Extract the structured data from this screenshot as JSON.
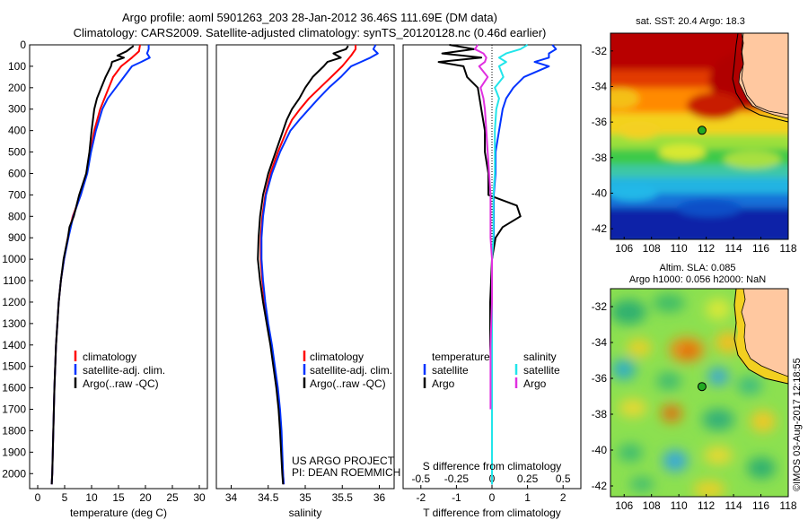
{
  "header": {
    "line1": "Argo profile: aoml 5901263_203 28-Jan-2012 36.46S 111.69E (DM data)",
    "line2": "Climatology: CARS2009. Satellite-adjusted climatology: synTS_20120128.nc (0.46d earlier)"
  },
  "credit": {
    "project": "US ARGO PROJECT",
    "pi": "PI: DEAN ROEMMICH",
    "imos": "©IMOS 03-Aug-2017 12:18:55"
  },
  "colors": {
    "climatology": "#ff0000",
    "satellite": "#0033ff",
    "argo": "#000000",
    "salinity_satellite": "#22e5ea",
    "salinity_argo": "#e030e0",
    "land": "#ffc8a0",
    "float_marker": "#22aa22"
  },
  "chart_data": [
    {
      "type": "line",
      "id": "temperature",
      "xlabel": "temperature (deg C)",
      "ylabel": "",
      "xlim": [
        -1.5,
        31.5
      ],
      "ylim": [
        2070,
        0
      ],
      "xticks": [
        "0",
        "5",
        "10",
        "15",
        "20",
        "25",
        "30"
      ],
      "yticks": [
        "0",
        "100",
        "200",
        "300",
        "400",
        "500",
        "600",
        "700",
        "800",
        "900",
        "1000",
        "1100",
        "1200",
        "1300",
        "1400",
        "1500",
        "1600",
        "1700",
        "1800",
        "1900",
        "2000"
      ],
      "legend": [
        "climatology",
        "satellite-adj. clim.",
        "Argo(..raw -QC)"
      ],
      "series": [
        {
          "name": "climatology",
          "color": "#ff0000",
          "depth": [
            0,
            30,
            60,
            100,
            150,
            200,
            250,
            300,
            400,
            500,
            600,
            700,
            800,
            900,
            1000,
            1100,
            1200,
            1400,
            1600,
            1800,
            2000,
            2050
          ],
          "values": [
            19.0,
            18.8,
            17.5,
            15.5,
            14.0,
            13.2,
            12.4,
            11.6,
            10.5,
            9.8,
            9.1,
            8.0,
            6.5,
            5.6,
            4.9,
            4.3,
            3.9,
            3.4,
            3.1,
            2.9,
            2.7,
            2.6
          ]
        },
        {
          "name": "satellite-adj. clim.",
          "color": "#0033ff",
          "depth": [
            0,
            20,
            40,
            60,
            80,
            100,
            150,
            200,
            250,
            300,
            400,
            500,
            600,
            700,
            800,
            900,
            1000,
            1100,
            1200,
            1400,
            1600,
            1800,
            2000,
            2050
          ],
          "values": [
            20.6,
            20.6,
            20.3,
            20.8,
            19.2,
            17.5,
            16.0,
            14.5,
            13.0,
            12.0,
            10.8,
            9.9,
            9.2,
            8.0,
            6.6,
            5.7,
            4.9,
            4.3,
            3.9,
            3.4,
            3.1,
            2.9,
            2.7,
            2.6
          ]
        },
        {
          "name": "Argo(..raw -QC)",
          "color": "#000000",
          "depth": [
            5,
            30,
            50,
            60,
            80,
            100,
            150,
            200,
            250,
            300,
            400,
            500,
            600,
            700,
            800,
            850,
            900,
            1000,
            1100,
            1200,
            1400,
            1600,
            1800,
            2000,
            2050
          ],
          "values": [
            17.8,
            16.5,
            14.8,
            16.0,
            13.8,
            13.6,
            12.6,
            11.8,
            11.0,
            10.5,
            10.0,
            9.6,
            9.0,
            7.7,
            6.7,
            5.9,
            5.6,
            4.8,
            4.3,
            3.9,
            3.4,
            3.1,
            2.9,
            2.7,
            2.6
          ]
        }
      ]
    },
    {
      "type": "line",
      "id": "salinity",
      "xlabel": "salinity",
      "ylabel": "",
      "xlim": [
        33.8,
        36.2
      ],
      "ylim": [
        2070,
        0
      ],
      "xticks": [
        "34",
        "34.5",
        "35",
        "35.5",
        "36"
      ],
      "legend": [
        "climatology",
        "satellite-adj. clim.",
        "Argo(..raw -QC)"
      ],
      "series": [
        {
          "name": "climatology",
          "color": "#ff0000",
          "depth": [
            0,
            20,
            50,
            100,
            150,
            200,
            250,
            300,
            350,
            400,
            500,
            600,
            700,
            800,
            900,
            1000,
            1100,
            1200,
            1300,
            1400,
            1500,
            1600,
            1700,
            1800,
            2000,
            2050
          ],
          "values": [
            35.68,
            35.68,
            35.62,
            35.5,
            35.35,
            35.2,
            35.05,
            34.93,
            34.82,
            34.75,
            34.63,
            34.53,
            34.46,
            34.42,
            34.4,
            34.4,
            34.42,
            34.45,
            34.49,
            34.54,
            34.58,
            34.62,
            34.65,
            34.67,
            34.7,
            34.71
          ]
        },
        {
          "name": "satellite-adj. clim.",
          "color": "#0033ff",
          "depth": [
            0,
            20,
            40,
            60,
            80,
            100,
            150,
            200,
            250,
            300,
            350,
            400,
            500,
            600,
            700,
            800,
            900,
            1000,
            1100,
            1200,
            1300,
            1400,
            1500,
            1600,
            1700,
            1800,
            2000,
            2050
          ],
          "values": [
            35.95,
            35.92,
            35.98,
            35.88,
            35.75,
            35.62,
            35.48,
            35.32,
            35.18,
            35.05,
            34.92,
            34.8,
            34.66,
            34.55,
            34.47,
            34.43,
            34.41,
            34.41,
            34.43,
            34.46,
            34.5,
            34.55,
            34.59,
            34.63,
            34.66,
            34.68,
            34.7,
            34.71
          ]
        },
        {
          "name": "Argo(..raw -QC)",
          "color": "#000000",
          "depth": [
            5,
            20,
            40,
            60,
            80,
            100,
            150,
            200,
            250,
            300,
            350,
            400,
            500,
            600,
            700,
            800,
            900,
            1000,
            1100,
            1200,
            1300,
            1400,
            1500,
            1600,
            1700,
            1800,
            2000,
            2050
          ],
          "values": [
            35.58,
            35.55,
            35.38,
            35.48,
            35.3,
            35.25,
            35.1,
            35.0,
            34.92,
            34.82,
            34.75,
            34.7,
            34.6,
            34.5,
            34.43,
            34.39,
            34.37,
            34.36,
            34.39,
            34.43,
            34.48,
            34.53,
            34.57,
            34.61,
            34.64,
            34.66,
            34.69,
            34.7
          ]
        }
      ]
    },
    {
      "type": "line",
      "id": "difference",
      "xlabel": "T difference from climatology",
      "xlabel_top": "S difference from climatology",
      "xlim": [
        -2.5,
        2.5
      ],
      "ylim": [
        2070,
        0
      ],
      "xticks": [
        "-2",
        "-1",
        "0",
        "1",
        "2"
      ],
      "xticks_top": [
        "-0.5",
        "-0.25",
        "0",
        "0.25",
        "0.5"
      ],
      "legend_titles": [
        "temperature",
        "salinity"
      ],
      "legend": [
        "satellite",
        "Argo",
        "satellite",
        "Argo"
      ],
      "series": [
        {
          "name": "satellite",
          "color": "#0033ff",
          "depth": [
            0,
            20,
            40,
            60,
            80,
            100,
            150,
            200,
            250,
            300,
            400,
            500,
            600,
            700,
            800,
            900,
            1000,
            1200,
            1400,
            1600,
            1800,
            2050
          ],
          "values": [
            1.7,
            1.8,
            1.6,
            1.6,
            1.2,
            1.6,
            0.9,
            0.6,
            0.4,
            0.3,
            0.2,
            0.1,
            0.1,
            0.05,
            0.05,
            0.05,
            0.0,
            0.0,
            0.0,
            0.0,
            0.0,
            0.0
          ]
        },
        {
          "name": "Argo",
          "color": "#000000",
          "depth": [
            0,
            20,
            40,
            60,
            80,
            100,
            150,
            200,
            300,
            400,
            500,
            600,
            700,
            750,
            800,
            850,
            900,
            1000,
            1200,
            1400,
            1600,
            1800,
            2050
          ],
          "values": [
            -1.2,
            -0.5,
            -1.4,
            -0.3,
            -1.5,
            -0.8,
            -0.7,
            -0.4,
            -0.3,
            -0.2,
            -0.2,
            -0.1,
            -0.1,
            0.7,
            0.8,
            0.3,
            0.1,
            0.0,
            -0.05,
            -0.05,
            0.0,
            0.0,
            0.0
          ]
        },
        {
          "name": "satellite (salinity)",
          "color": "#22e5ea",
          "depth": [
            0,
            20,
            40,
            60,
            80,
            100,
            150,
            200,
            250,
            300,
            400,
            500,
            600,
            700,
            800,
            900,
            1000,
            1200,
            1400,
            1600,
            1800,
            2050
          ],
          "values": [
            0.25,
            0.2,
            0.1,
            0.05,
            0.1,
            0.05,
            0.08,
            0.02,
            0.05,
            0.03,
            0.02,
            0.02,
            0.02,
            0.01,
            0.01,
            0.01,
            0.0,
            0.0,
            0.0,
            0.0,
            0.0,
            0.0
          ]
        },
        {
          "name": "Argo (salinity)",
          "color": "#e030e0",
          "depth": [
            0,
            20,
            40,
            60,
            80,
            100,
            150,
            200,
            250,
            300,
            400,
            500,
            600,
            700,
            800,
            900,
            1000,
            1200,
            1400,
            1600,
            1700
          ],
          "values": [
            -0.1,
            -0.12,
            -0.06,
            -0.04,
            -0.05,
            -0.09,
            -0.03,
            -0.08,
            -0.06,
            -0.05,
            -0.04,
            -0.03,
            -0.02,
            -0.01,
            -0.01,
            -0.01,
            0.0,
            0.0,
            -0.01,
            -0.01,
            -0.01
          ]
        }
      ]
    },
    {
      "type": "heatmap",
      "id": "sst-map",
      "title": "sat. SST: 20.4  Argo: 18.3",
      "xlim": [
        105,
        118
      ],
      "ylim": [
        -42.6,
        -31
      ],
      "xticks": [
        "106",
        "108",
        "110",
        "112",
        "114",
        "116",
        "118"
      ],
      "yticks": [
        "-32",
        "-34",
        "-36",
        "-38",
        "-40",
        "-42"
      ],
      "float_position": {
        "lon": 111.69,
        "lat": -36.46
      }
    },
    {
      "type": "heatmap",
      "id": "sla-map",
      "title": "Altim. SLA: 0.085",
      "subtitle": "Argo h1000: 0.056 h2000: NaN",
      "xlim": [
        105,
        118
      ],
      "ylim": [
        -42.6,
        -31
      ],
      "xticks": [
        "106",
        "108",
        "110",
        "112",
        "114",
        "116",
        "118"
      ],
      "yticks": [
        "-32",
        "-34",
        "-36",
        "-38",
        "-40",
        "-42"
      ],
      "float_position": {
        "lon": 111.69,
        "lat": -36.46
      }
    }
  ]
}
